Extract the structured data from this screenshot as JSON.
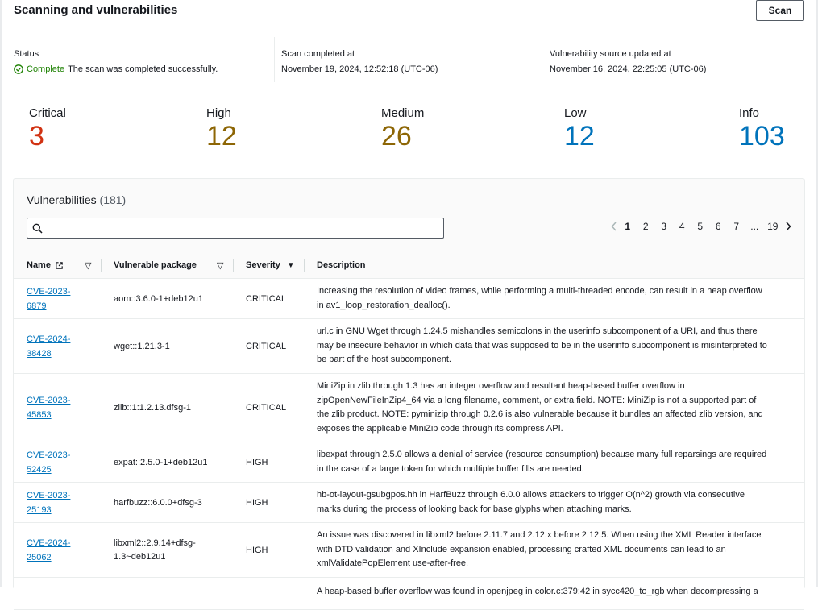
{
  "header": {
    "title": "Scanning and vulnerabilities",
    "scan_button": "Scan"
  },
  "status": {
    "label": "Status",
    "state": "Complete",
    "message": "The scan was completed successfully.",
    "icon": "check-circle-icon",
    "color": "#1d8102"
  },
  "scan_completed": {
    "label": "Scan completed at",
    "value": "November 19, 2024, 12:52:18 (UTC-06)"
  },
  "source_updated": {
    "label": "Vulnerability source updated at",
    "value": "November 16, 2024, 22:25:05 (UTC-06)"
  },
  "severity_counts": [
    {
      "label": "Critical",
      "value": "3",
      "color": "#d13212"
    },
    {
      "label": "High",
      "value": "12",
      "color": "#8d6605"
    },
    {
      "label": "Medium",
      "value": "26",
      "color": "#8d6605"
    },
    {
      "label": "Low",
      "value": "12",
      "color": "#0073bb"
    },
    {
      "label": "Info",
      "value": "103",
      "color": "#0073bb"
    }
  ],
  "vulnerabilities": {
    "title": "Vulnerabilities",
    "count": "(181)",
    "search_placeholder": "",
    "pagination": {
      "pages": [
        "1",
        "2",
        "3",
        "4",
        "5",
        "6",
        "7",
        "...",
        "19"
      ],
      "current": "1"
    },
    "columns": {
      "name": "Name",
      "package": "Vulnerable package",
      "severity": "Severity",
      "description": "Description"
    },
    "rows": [
      {
        "cve": "CVE-2023-6879",
        "cve_l1": "CVE-2023-",
        "cve_l2": "6879",
        "pkg_l1": "aom::3.6.0-1+deb12u1",
        "pkg_l2": "",
        "severity": "CRITICAL",
        "desc": [
          "Increasing the resolution of video frames, while performing a multi-threaded encode, can result in a heap overflow",
          "in av1_loop_restoration_dealloc()."
        ]
      },
      {
        "cve": "CVE-2024-38428",
        "cve_l1": "CVE-2024-",
        "cve_l2": "38428",
        "pkg_l1": "wget::1.21.3-1",
        "pkg_l2": "",
        "severity": "CRITICAL",
        "desc": [
          "url.c in GNU Wget through 1.24.5 mishandles semicolons in the userinfo subcomponent of a URI, and thus there",
          "may be insecure behavior in which data that was supposed to be in the userinfo subcomponent is misinterpreted to",
          "be part of the host subcomponent."
        ]
      },
      {
        "cve": "CVE-2023-45853",
        "cve_l1": "CVE-2023-",
        "cve_l2": "45853",
        "pkg_l1": "zlib::1:1.2.13.dfsg-1",
        "pkg_l2": "",
        "severity": "CRITICAL",
        "desc": [
          "MiniZip in zlib through 1.3 has an integer overflow and resultant heap-based buffer overflow in",
          "zipOpenNewFileInZip4_64 via a long filename, comment, or extra field. NOTE: MiniZip is not a supported part of",
          "the zlib product. NOTE: pyminizip through 0.2.6 is also vulnerable because it bundles an affected zlib version, and",
          "exposes the applicable MiniZip code through its compress API."
        ]
      },
      {
        "cve": "CVE-2023-52425",
        "cve_l1": "CVE-2023-",
        "cve_l2": "52425",
        "pkg_l1": "expat::2.5.0-1+deb12u1",
        "pkg_l2": "",
        "severity": "HIGH",
        "desc": [
          "libexpat through 2.5.0 allows a denial of service (resource consumption) because many full reparsings are required",
          "in the case of a large token for which multiple buffer fills are needed."
        ]
      },
      {
        "cve": "CVE-2023-25193",
        "cve_l1": "CVE-2023-",
        "cve_l2": "25193",
        "pkg_l1": "harfbuzz::6.0.0+dfsg-3",
        "pkg_l2": "",
        "severity": "HIGH",
        "desc": [
          "hb-ot-layout-gsubgpos.hh in HarfBuzz through 6.0.0 allows attackers to trigger O(n^2) growth via consecutive",
          "marks during the process of looking back for base glyphs when attaching marks."
        ]
      },
      {
        "cve": "CVE-2024-25062",
        "cve_l1": "CVE-2024-",
        "cve_l2": "25062",
        "pkg_l1": "libxml2::2.9.14+dfsg-",
        "pkg_l2": "1.3~deb12u1",
        "severity": "HIGH",
        "desc": [
          "An issue was discovered in libxml2 before 2.11.7 and 2.12.x before 2.12.5. When using the XML Reader interface",
          "with DTD validation and XInclude expansion enabled, processing crafted XML documents can lead to an",
          "xmlValidatePopElement use-after-free."
        ]
      },
      {
        "cve": "",
        "cve_l1": "",
        "cve_l2": "",
        "pkg_l1": "",
        "pkg_l2": "",
        "severity": "",
        "desc": [
          "A heap-based buffer overflow was found in openjpeg in color.c:379:42 in sycc420_to_rgb when decompressing a"
        ]
      }
    ]
  }
}
